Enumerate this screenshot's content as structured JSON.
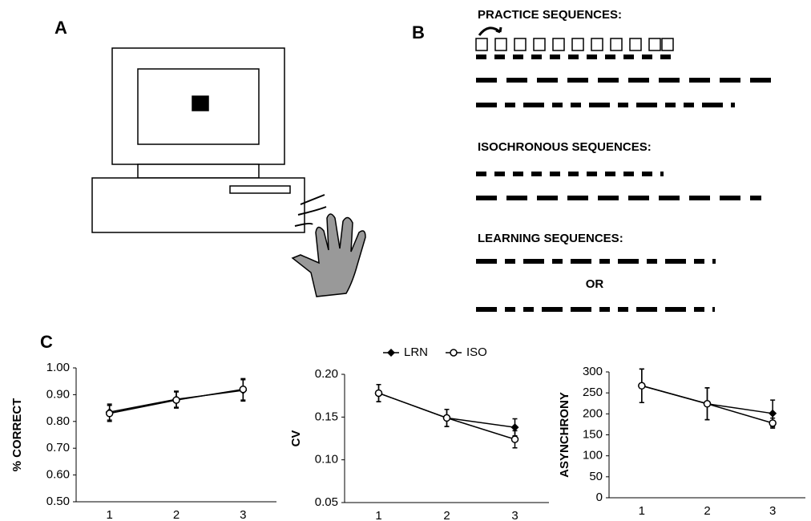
{
  "panels": [
    "A",
    "B",
    "C"
  ],
  "panel_b": {
    "practice": "PRACTICE SEQUENCES:",
    "isochronous": "ISOCHRONOUS SEQUENCES:",
    "learning": "LEARNING SEQUENCES:",
    "or": "OR"
  },
  "chart_data": [
    {
      "type": "line",
      "ylabel": "% CORRECT",
      "categories": [
        "1",
        "2",
        "3"
      ],
      "ylim": [
        0.5,
        1.0
      ],
      "yticks": [
        {
          "value": 0.5,
          "label": "0.50"
        },
        {
          "value": 0.6,
          "label": "0.60"
        },
        {
          "value": 0.7,
          "label": "0.70"
        },
        {
          "value": 0.8,
          "label": "0.80"
        },
        {
          "value": 0.9,
          "label": "0.90"
        },
        {
          "value": 1.0,
          "label": "1.00"
        }
      ],
      "series": [
        {
          "color": "#000000",
          "marker": "diamond",
          "values": [
            0.835,
            0.883,
            0.916
          ],
          "errors": [
            0.03,
            0.03,
            0.04
          ]
        },
        {
          "color": "#000000",
          "marker": "open-circle",
          "values": [
            0.83,
            0.88,
            0.92
          ],
          "errors": [
            0.03,
            0.03,
            0.04
          ]
        }
      ]
    },
    {
      "type": "line",
      "ylabel": "CV",
      "categories": [
        "1",
        "2",
        "3"
      ],
      "legend": true,
      "ylim": [
        0.05,
        0.2
      ],
      "yticks": [
        {
          "value": 0.05,
          "label": "0.05"
        },
        {
          "value": 0.1,
          "label": "0.10"
        },
        {
          "value": 0.15,
          "label": "0.15"
        },
        {
          "value": 0.2,
          "label": "0.20"
        }
      ],
      "series": [
        {
          "name": "LRN",
          "color": "#000000",
          "marker": "diamond",
          "values": [
            0.178,
            0.149,
            0.138
          ],
          "errors": [
            0.01,
            0.01,
            0.01
          ]
        },
        {
          "name": "ISO",
          "color": "#000000",
          "marker": "open-circle",
          "values": [
            0.178,
            0.149,
            0.124
          ],
          "errors": [
            0.01,
            0.01,
            0.01
          ]
        }
      ]
    },
    {
      "type": "line",
      "ylabel": "ASYNCHRONY",
      "categories": [
        "1",
        "2",
        "3"
      ],
      "ylim": [
        0,
        300
      ],
      "yticks": [
        0,
        50,
        100,
        150,
        200,
        250,
        300
      ],
      "series": [
        {
          "color": "#000000",
          "marker": "diamond",
          "values": [
            267,
            224,
            201
          ],
          "errors": [
            40,
            38,
            32
          ]
        },
        {
          "color": "#000000",
          "marker": "open-circle",
          "values": [
            267,
            224,
            178
          ],
          "errors": [
            40,
            38,
            12
          ]
        }
      ]
    }
  ]
}
